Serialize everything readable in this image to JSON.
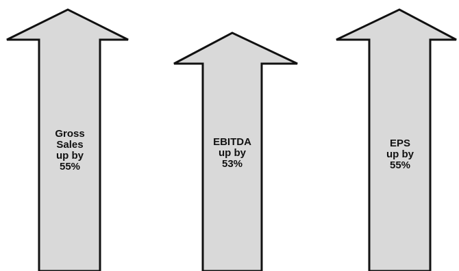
{
  "arrows": [
    {
      "label": "Gross\nSales\n up by\n 55%"
    },
    {
      "label": "EBITDA\nup by\n 53%"
    },
    {
      "label": "EPS\nup by\n55%"
    }
  ],
  "colors": {
    "arrow_fill": "#d9d9d9",
    "arrow_stroke": "#111111",
    "text": "#111111"
  }
}
